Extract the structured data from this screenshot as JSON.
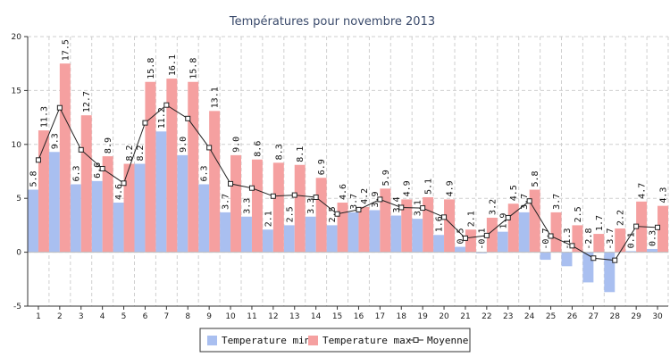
{
  "chart_data": {
    "type": "bar",
    "title": "Températures pour novembre 2013",
    "categories": [
      "1",
      "2",
      "3",
      "4",
      "5",
      "6",
      "7",
      "8",
      "9",
      "10",
      "11",
      "12",
      "13",
      "14",
      "15",
      "16",
      "17",
      "18",
      "19",
      "20",
      "21",
      "22",
      "23",
      "24",
      "25",
      "26",
      "27",
      "28",
      "29",
      "30"
    ],
    "ylim": [
      -5,
      20
    ],
    "yticks": [
      -5,
      0,
      5,
      10,
      15,
      20
    ],
    "grid": true,
    "legend_position": "bottom",
    "series": [
      {
        "name": "Temperature min",
        "type": "bar",
        "color": "#a9bff0",
        "values": [
          5.8,
          9.3,
          6.3,
          6.6,
          4.6,
          8.2,
          11.2,
          9.0,
          6.3,
          3.7,
          3.3,
          2.1,
          2.5,
          3.3,
          2.5,
          3.7,
          3.9,
          3.4,
          3.1,
          1.6,
          0.5,
          -0.1,
          1.9,
          3.7,
          -0.7,
          -1.3,
          -2.8,
          -3.7,
          0.1,
          0.3
        ]
      },
      {
        "name": "Temperature max",
        "type": "bar",
        "color": "#f5a0a0",
        "values": [
          11.3,
          17.5,
          12.7,
          8.9,
          8.2,
          15.8,
          16.1,
          15.8,
          13.1,
          9.0,
          8.6,
          8.3,
          8.1,
          6.9,
          4.6,
          4.2,
          5.9,
          4.9,
          5.1,
          4.9,
          2.1,
          3.2,
          4.5,
          5.8,
          3.7,
          2.5,
          1.7,
          2.2,
          4.7,
          4.3
        ]
      },
      {
        "name": "Moyenne",
        "type": "line",
        "color": "#222222",
        "values": [
          8.55,
          13.4,
          9.5,
          7.75,
          6.4,
          12.0,
          13.65,
          12.4,
          9.7,
          6.35,
          5.95,
          5.2,
          5.3,
          5.1,
          3.55,
          3.95,
          4.9,
          4.15,
          4.1,
          3.25,
          1.3,
          1.55,
          3.2,
          4.75,
          1.5,
          0.6,
          -0.55,
          -0.75,
          2.4,
          2.3
        ]
      }
    ]
  },
  "colors": {
    "min_fill": "#a9bff0",
    "max_fill": "#f5a0a0",
    "line": "#222222",
    "grid": "#cfcfcf",
    "title": "#3a4a6b"
  }
}
